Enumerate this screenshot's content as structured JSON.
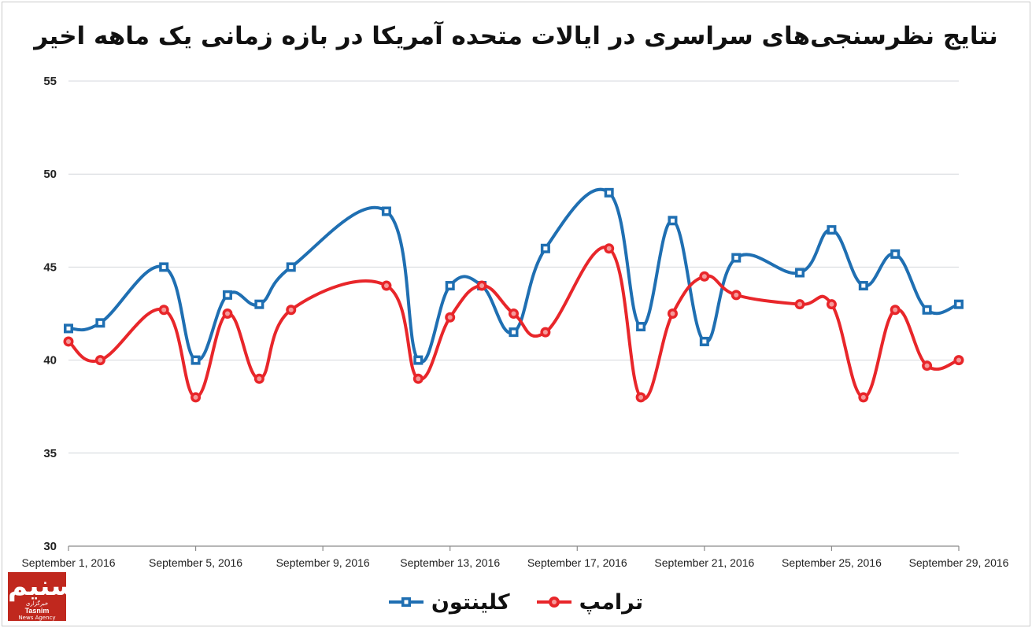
{
  "title": "نتایج نظرسنجی‌های سراسری در ایالات متحده آمریکا در بازه زمانی یک ماهه اخیر",
  "logo": {
    "mark": "تسنیم",
    "tagline": "خبرگزاری",
    "name": "Tasnim",
    "sub": "News Agency",
    "color": "#c0281e"
  },
  "legend": [
    {
      "name": "کلینتون",
      "color": "#1f6fb2",
      "marker": "square"
    },
    {
      "name": "ترامپ",
      "color": "#e8262a",
      "marker": "circle"
    }
  ],
  "chart_data": {
    "type": "line",
    "title": "نتایج نظرسنجی‌های سراسری در ایالات متحده آمریکا در بازه زمانی یک ماهه اخیر",
    "xlabel": "",
    "ylabel": "",
    "ylim": [
      30,
      55
    ],
    "yticks": [
      30,
      35,
      40,
      45,
      50,
      55
    ],
    "xlim": [
      1,
      29
    ],
    "xticks": [
      {
        "day": 1,
        "label": "September 1, 2016"
      },
      {
        "day": 5,
        "label": "September 5, 2016"
      },
      {
        "day": 9,
        "label": "September 9, 2016"
      },
      {
        "day": 13,
        "label": "September 13, 2016"
      },
      {
        "day": 17,
        "label": "September 17, 2016"
      },
      {
        "day": 21,
        "label": "September 21, 2016"
      },
      {
        "day": 25,
        "label": "September 25, 2016"
      },
      {
        "day": 29,
        "label": "September 29, 2016"
      }
    ],
    "grid": true,
    "legend_position": "bottom",
    "series": [
      {
        "name": "کلینتون",
        "color": "#1f6fb2",
        "marker": "square",
        "points": [
          {
            "x": 1,
            "y": 41.7
          },
          {
            "x": 2,
            "y": 42
          },
          {
            "x": 4,
            "y": 45
          },
          {
            "x": 5,
            "y": 40
          },
          {
            "x": 6,
            "y": 43.5
          },
          {
            "x": 7,
            "y": 43
          },
          {
            "x": 8,
            "y": 45
          },
          {
            "x": 11,
            "y": 48
          },
          {
            "x": 12,
            "y": 40
          },
          {
            "x": 13,
            "y": 44
          },
          {
            "x": 14,
            "y": 44
          },
          {
            "x": 15,
            "y": 41.5
          },
          {
            "x": 16,
            "y": 46
          },
          {
            "x": 18,
            "y": 49
          },
          {
            "x": 19,
            "y": 41.8
          },
          {
            "x": 20,
            "y": 47.5
          },
          {
            "x": 21,
            "y": 41
          },
          {
            "x": 22,
            "y": 45.5
          },
          {
            "x": 24,
            "y": 44.7
          },
          {
            "x": 25,
            "y": 47
          },
          {
            "x": 26,
            "y": 44
          },
          {
            "x": 27,
            "y": 45.7
          },
          {
            "x": 28,
            "y": 42.7
          },
          {
            "x": 29,
            "y": 43
          }
        ]
      },
      {
        "name": "ترامپ",
        "color": "#e8262a",
        "marker": "circle",
        "points": [
          {
            "x": 1,
            "y": 41
          },
          {
            "x": 2,
            "y": 40
          },
          {
            "x": 4,
            "y": 42.7
          },
          {
            "x": 5,
            "y": 38
          },
          {
            "x": 6,
            "y": 42.5
          },
          {
            "x": 7,
            "y": 39
          },
          {
            "x": 8,
            "y": 42.7
          },
          {
            "x": 11,
            "y": 44
          },
          {
            "x": 12,
            "y": 39
          },
          {
            "x": 13,
            "y": 42.3
          },
          {
            "x": 14,
            "y": 44
          },
          {
            "x": 15,
            "y": 42.5
          },
          {
            "x": 16,
            "y": 41.5
          },
          {
            "x": 18,
            "y": 46
          },
          {
            "x": 19,
            "y": 38
          },
          {
            "x": 20,
            "y": 42.5
          },
          {
            "x": 21,
            "y": 44.5
          },
          {
            "x": 22,
            "y": 43.5
          },
          {
            "x": 24,
            "y": 43
          },
          {
            "x": 25,
            "y": 43
          },
          {
            "x": 26,
            "y": 38
          },
          {
            "x": 27,
            "y": 42.7
          },
          {
            "x": 28,
            "y": 39.7
          },
          {
            "x": 29,
            "y": 40
          }
        ]
      }
    ]
  }
}
